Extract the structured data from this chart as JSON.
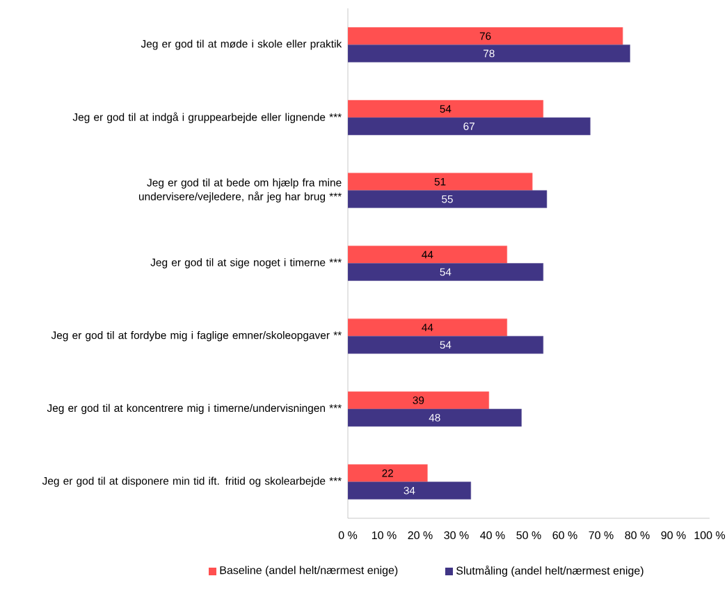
{
  "chart_data": {
    "type": "bar",
    "orientation": "horizontal",
    "categories": [
      "Jeg er god til at møde i skole eller praktik",
      "Jeg er god til at indgå i gruppearbejde eller lignende ***",
      "Jeg er god til at bede om hjælp fra mine undervisere/vejledere, når jeg har brug ***",
      "Jeg er god til at sige noget i timerne ***",
      "Jeg er god til at fordybe mig i faglige emner/skoleopgaver **",
      "Jeg er god til at koncentrere mig i timerne/undervisningen ***",
      "Jeg er god til at disponere min tid ift. fritid og skolearbejde ***"
    ],
    "series": [
      {
        "name": "Baseline (andel helt/nærmest enige)",
        "color": "#ff5050",
        "values": [
          76,
          54,
          51,
          44,
          44,
          39,
          22
        ]
      },
      {
        "name": "Slutmåling (andel helt/nærmest enige)",
        "color": "#403585",
        "values": [
          78,
          67,
          55,
          54,
          54,
          48,
          34
        ]
      }
    ],
    "xlim": [
      0,
      100
    ],
    "xticks": [
      {
        "value": 0,
        "label": "0 %"
      },
      {
        "value": 10,
        "label": "10 %"
      },
      {
        "value": 20,
        "label": "20 %"
      },
      {
        "value": 30,
        "label": "30 %"
      },
      {
        "value": 40,
        "label": "40 %"
      },
      {
        "value": 50,
        "label": "50 %"
      },
      {
        "value": 60,
        "label": "60 %"
      },
      {
        "value": 70,
        "label": "70 %"
      },
      {
        "value": 80,
        "label": "80 %"
      },
      {
        "value": 90,
        "label": "90 %"
      },
      {
        "value": 100,
        "label": "100 %"
      }
    ],
    "data_labels": true,
    "grid": false,
    "legend": "bottom"
  }
}
